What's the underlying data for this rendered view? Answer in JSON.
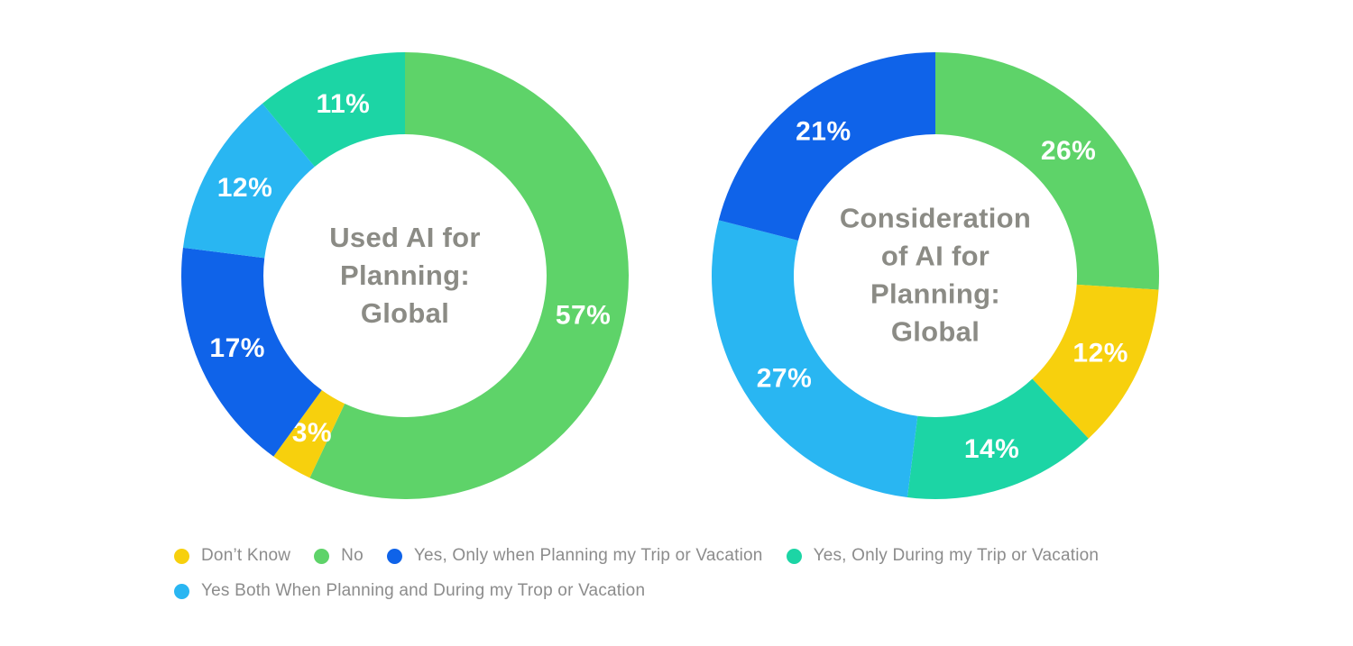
{
  "page": {
    "background": "#ffffff",
    "text_gray": "#8b8b85"
  },
  "chart_data": [
    {
      "type": "pie",
      "subtype": "donut",
      "title": "Used AI for Planning: Global",
      "title_lines": [
        "Used AI for",
        "Planning:",
        "Global"
      ],
      "start_angle_deg": 0,
      "direction": "clockwise",
      "outer_radius": 248,
      "inner_radius": 157,
      "slices": [
        {
          "label": "No",
          "value": 57,
          "display": "57%",
          "color": "#5ed369"
        },
        {
          "label": "Don’t Know",
          "value": 3,
          "display": "3%",
          "color": "#f7d00d"
        },
        {
          "label": "Yes, Only when Planning my Trip or Vacation",
          "value": 17,
          "display": "17%",
          "color": "#0f63e9"
        },
        {
          "label": "Yes Both When Planning and During my Trop or Vacation",
          "value": 12,
          "display": "12%",
          "color": "#29b6f2"
        },
        {
          "label": "Yes, Only During my Trip or Vacation",
          "value": 11,
          "display": "11%",
          "color": "#1cd5a5"
        }
      ]
    },
    {
      "type": "pie",
      "subtype": "donut",
      "title": "Consideration of AI for Planning: Global",
      "title_lines": [
        "Consideration",
        "of AI for",
        "Planning:",
        "Global"
      ],
      "start_angle_deg": 0,
      "direction": "clockwise",
      "outer_radius": 248,
      "inner_radius": 157,
      "slices": [
        {
          "label": "No",
          "value": 26,
          "display": "26%",
          "color": "#5ed369"
        },
        {
          "label": "Don’t Know",
          "value": 12,
          "display": "12%",
          "color": "#f7d00d"
        },
        {
          "label": "Yes, Only During my Trip or Vacation",
          "value": 14,
          "display": "14%",
          "color": "#1cd5a5"
        },
        {
          "label": "Yes Both When Planning and During my Trop or Vacation",
          "value": 27,
          "display": "27%",
          "color": "#29b6f2"
        },
        {
          "label": "Yes, Only when Planning my Trip or Vacation",
          "value": 21,
          "display": "21%",
          "color": "#0f63e9"
        }
      ]
    }
  ],
  "legend": {
    "items": [
      {
        "label": "Don’t Know",
        "color": "#f7d00d"
      },
      {
        "label": "No",
        "color": "#5ed369"
      },
      {
        "label": "Yes, Only when Planning my Trip or Vacation",
        "color": "#0f63e9"
      },
      {
        "label": "Yes, Only During my Trip or Vacation",
        "color": "#1cd5a5"
      },
      {
        "label": "Yes Both When Planning and During my Trop or Vacation",
        "color": "#29b6f2"
      }
    ]
  }
}
